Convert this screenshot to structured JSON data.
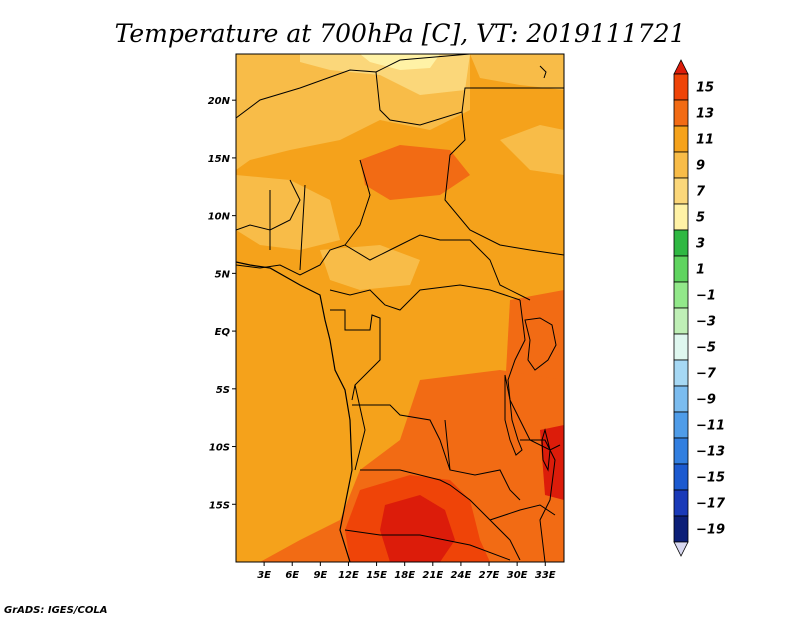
{
  "title": "Temperature at 700hPa [C], VT: 2019111721",
  "credit": "GrADS: IGES/COLA",
  "map": {
    "lon_range": [
      0,
      35
    ],
    "lat_range": [
      -20,
      24
    ],
    "lat_ticks": [
      {
        "label": "20N",
        "value": 20
      },
      {
        "label": "15N",
        "value": 15
      },
      {
        "label": "10N",
        "value": 10
      },
      {
        "label": "5N",
        "value": 5
      },
      {
        "label": "EQ",
        "value": 0
      },
      {
        "label": "5S",
        "value": -5
      },
      {
        "label": "10S",
        "value": -10
      },
      {
        "label": "15S",
        "value": -15
      }
    ],
    "lon_ticks": [
      {
        "label": "3E",
        "value": 3
      },
      {
        "label": "6E",
        "value": 6
      },
      {
        "label": "9E",
        "value": 9
      },
      {
        "label": "12E",
        "value": 12
      },
      {
        "label": "15E",
        "value": 15
      },
      {
        "label": "18E",
        "value": 18
      },
      {
        "label": "21E",
        "value": 21
      },
      {
        "label": "24E",
        "value": 24
      },
      {
        "label": "27E",
        "value": 27
      },
      {
        "label": "30E",
        "value": 30
      },
      {
        "label": "33E",
        "value": 33
      }
    ],
    "background_color": "#f5a21b"
  },
  "colorbar": {
    "labels": [
      "15",
      "13",
      "11",
      "9",
      "7",
      "5",
      "3",
      "1",
      "−1",
      "−3",
      "−5",
      "−7",
      "−9",
      "−11",
      "−13",
      "−15",
      "−17",
      "−19"
    ],
    "colors": [
      "#dc1c0a",
      "#ef4408",
      "#f26b14",
      "#f5a21b",
      "#f8bc48",
      "#fbd77a",
      "#fff2a6",
      "#2fb842",
      "#5fd45f",
      "#92e88a",
      "#bfefb6",
      "#dff7ef",
      "#a6d8f4",
      "#7bbcef",
      "#4f9ce8",
      "#327fe0",
      "#1c5ad0",
      "#1a3ab8",
      "#0c1f78",
      "#d8d8f0"
    ]
  }
}
